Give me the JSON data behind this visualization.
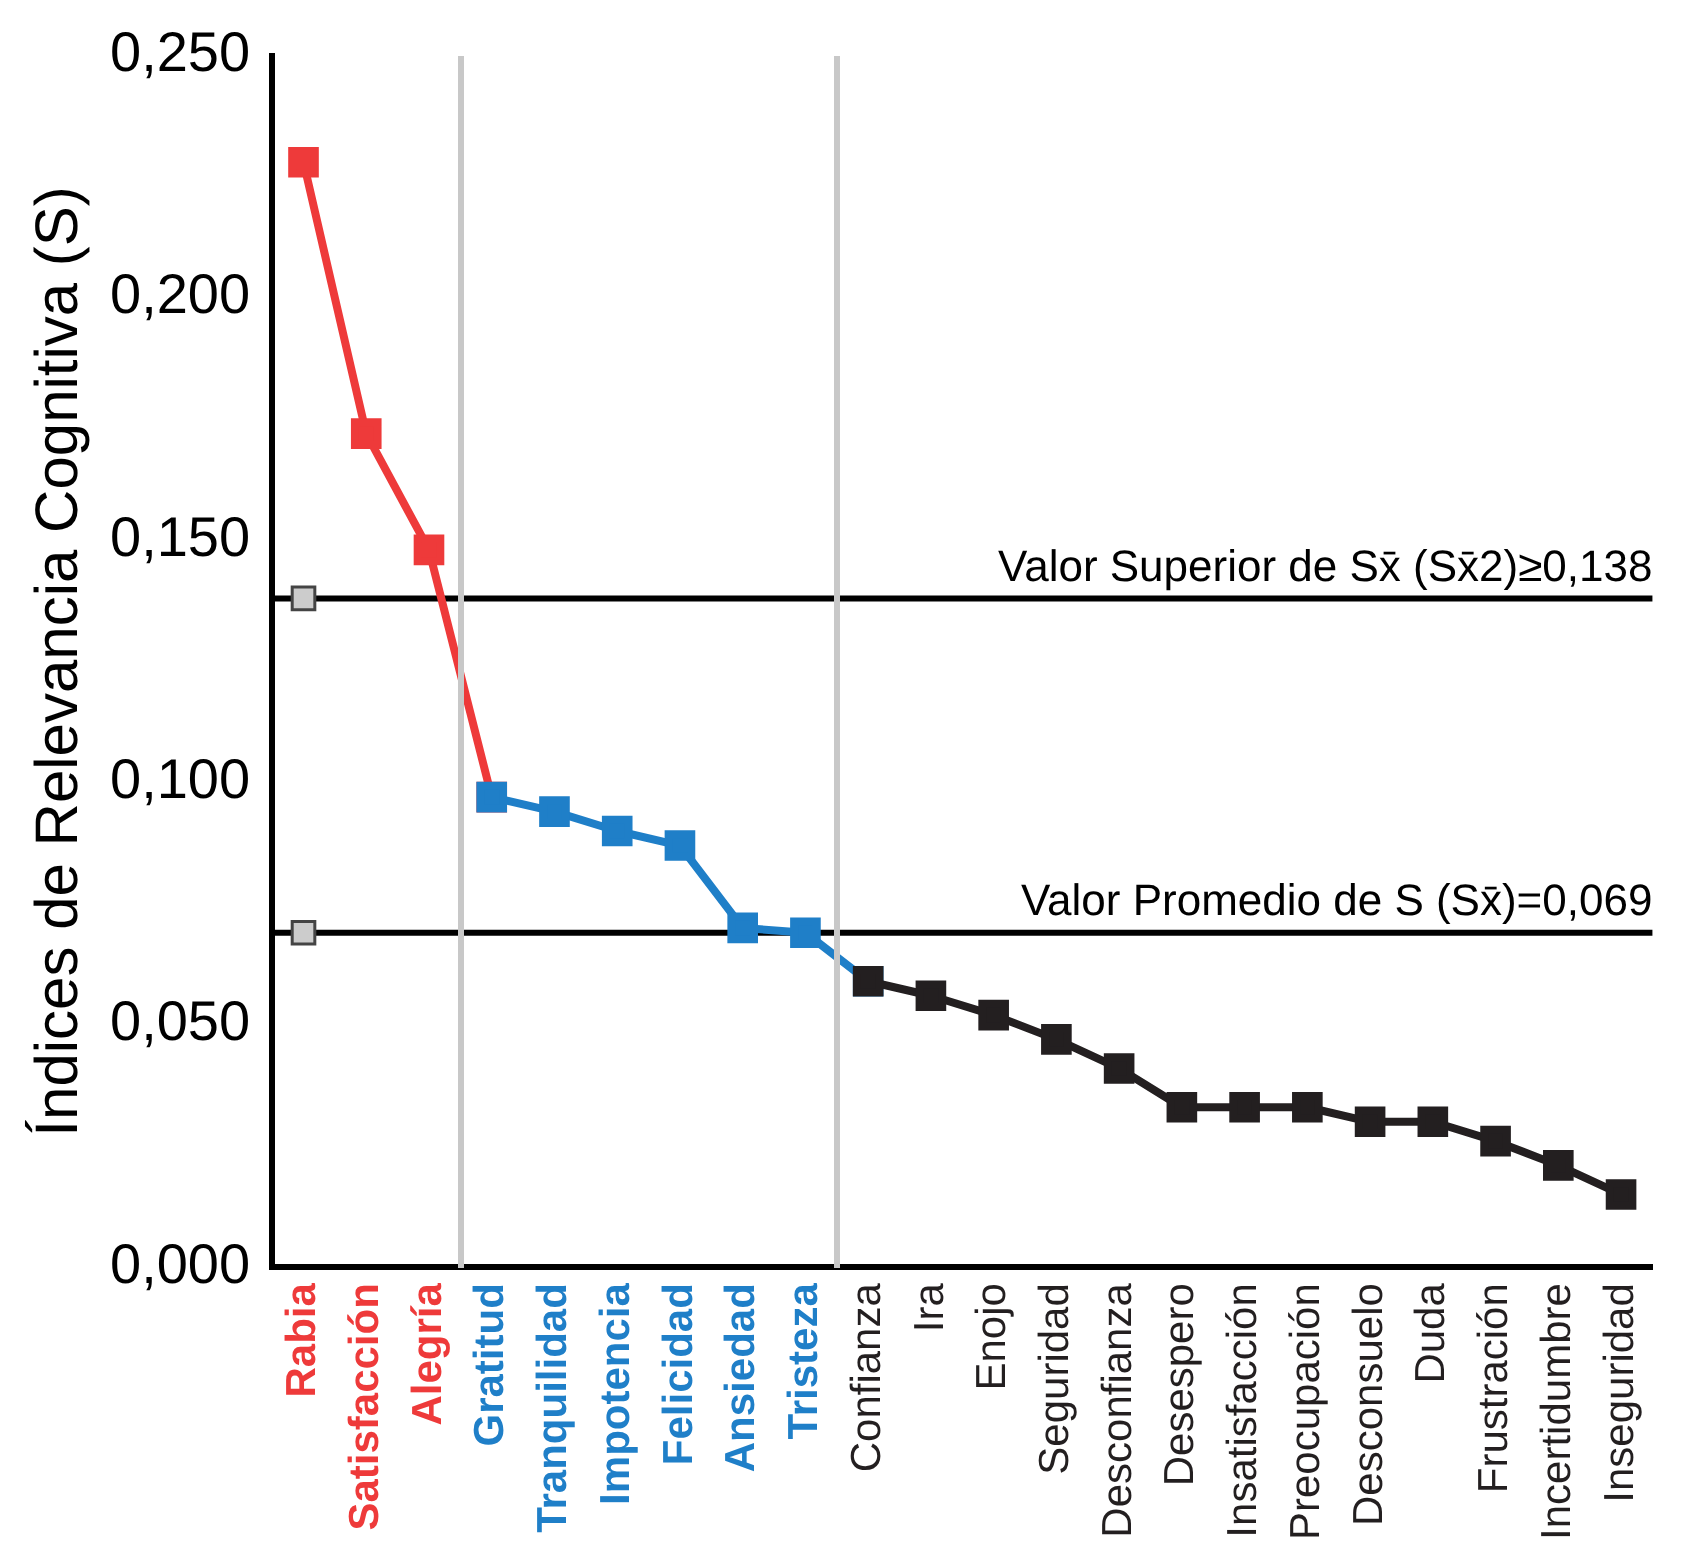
{
  "chart_data": {
    "type": "line",
    "ylabel": "Índices de Relevancia Cognitiva (S)",
    "categories": [
      "Rabia",
      "Satisfacción",
      "Alegría",
      "Gratitud",
      "Tranquilidad",
      "Impotencia",
      "Felicidad",
      "Ansiedad",
      "Tristeza",
      "Confianza",
      "Ira",
      "Enojo",
      "Seguridad",
      "Desconfianza",
      "Desespero",
      "Insatisfacción",
      "Preocupación",
      "Desconsuelo",
      "Duda",
      "Frustración",
      "Incertidumbre",
      "Inseguridad"
    ],
    "series": [
      {
        "color": "#ee3a3a",
        "values": [
          0.228,
          0.172,
          0.148,
          0.097,
          null,
          null,
          null,
          null,
          null,
          null,
          null,
          null,
          null,
          null,
          null,
          null,
          null,
          null,
          null,
          null,
          null,
          null
        ]
      },
      {
        "color": "#1f7fc8",
        "values": [
          null,
          null,
          null,
          0.097,
          0.094,
          0.09,
          0.087,
          0.07,
          0.069,
          0.059,
          null,
          null,
          null,
          null,
          null,
          null,
          null,
          null,
          null,
          null,
          null,
          null
        ]
      },
      {
        "color": "#231f20",
        "values": [
          null,
          null,
          null,
          null,
          null,
          null,
          null,
          null,
          null,
          0.059,
          0.056,
          0.052,
          0.047,
          0.041,
          0.033,
          0.033,
          0.033,
          0.03,
          0.03,
          0.026,
          0.021,
          0.015
        ]
      },
      {
        "type": "scatter",
        "x": [
          "Rabia",
          "Rabia"
        ],
        "color": "#cccccc",
        "values": [
          0.138,
          0.069
        ]
      }
    ],
    "ylim": [
      0,
      0.25
    ],
    "yticks": [
      {
        "value": 0,
        "label": "0,000"
      },
      {
        "value": 0.05,
        "label": "0,050"
      },
      {
        "value": 0.1,
        "label": "0,100"
      },
      {
        "value": 0.15,
        "label": "0,150"
      },
      {
        "value": 0.2,
        "label": "0,200"
      },
      {
        "value": 0.25,
        "label": "0,250"
      }
    ],
    "ref_lines": [
      {
        "axis": "y",
        "value": 0.138,
        "label": "Valor Superior de Sx̄ (Sx̄2)≥0,138",
        "color": "#000000"
      },
      {
        "axis": "y",
        "value": 0.069,
        "label": "Valor Promedio de S (Sx̄)=0,069",
        "color": "#000000"
      }
    ],
    "marker": "square",
    "grid": false,
    "legend": false
  }
}
